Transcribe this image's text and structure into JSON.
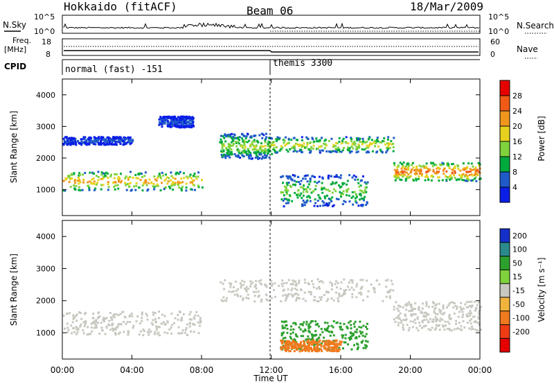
{
  "header": {
    "station": "Hokkaido (fitACF)",
    "beam": "Beam 06",
    "date": "18/Mar/2009"
  },
  "noise_panel": {
    "left_label": "N.Sky",
    "right_label": "N.Search",
    "left_ticks": [
      "10^5",
      "10^0"
    ],
    "right_ticks": [
      "10^5",
      "10^0"
    ]
  },
  "freq_panel": {
    "left_label_1": "Freq.",
    "left_label_2": "[MHz]",
    "right_label": "Nave",
    "left_ticks": [
      "18",
      "8"
    ],
    "right_ticks": [
      "60",
      "0"
    ]
  },
  "cpid": {
    "label": "CPID",
    "segments": [
      {
        "name": "normal (fast) -151",
        "start_hour": 0
      },
      {
        "name": "themis 3300",
        "start_hour": 12
      }
    ]
  },
  "axes": {
    "xlabel": "Time UT",
    "xticks": [
      "00:00",
      "04:00",
      "08:00",
      "12:00",
      "16:00",
      "20:00",
      "00:00"
    ],
    "ylabel": "Slant Range [km]",
    "yticks": [
      "1000",
      "2000",
      "3000",
      "4000"
    ]
  },
  "power_colorbar": {
    "label": "Power [dB]",
    "ticks": [
      "4",
      "8",
      "12",
      "16",
      "20",
      "24",
      "28"
    ],
    "colors": [
      "#0a1ee6",
      "#1e5ac8",
      "#00aa3c",
      "#7fd23c",
      "#e6d21e",
      "#f0961e",
      "#f05a14",
      "#e60000"
    ]
  },
  "velocity_colorbar": {
    "label": "Velocity [m s⁻¹]",
    "ticks": [
      "200",
      "100",
      "50",
      "15",
      "-15",
      "-50",
      "-100",
      "-200"
    ],
    "colors": [
      "#1430c8",
      "#2a8a8c",
      "#2ca02c",
      "#7fd23c",
      "#c8c8c0",
      "#f0b43c",
      "#f07a1e",
      "#f03c14",
      "#e60000"
    ]
  },
  "chart_data": [
    {
      "type": "heatmap",
      "title": "",
      "quantity": "Power",
      "xlabel": "Time UT",
      "ylabel": "Slant Range [km]",
      "xlim_hours": [
        0,
        24
      ],
      "ylim_km": [
        180,
        4500
      ],
      "echo_bands": [
        {
          "t0": 0.0,
          "t1": 8.0,
          "r0": 1000,
          "r1": 1600,
          "peak_db": 24
        },
        {
          "t0": 0.0,
          "t1": 4.0,
          "r0": 2450,
          "r1": 2700,
          "peak_db": 8
        },
        {
          "t0": 5.5,
          "t1": 7.5,
          "r0": 3000,
          "r1": 3350,
          "peak_db": 8
        },
        {
          "t0": 9.0,
          "t1": 12.0,
          "r0": 2000,
          "r1": 2800,
          "peak_db": 18
        },
        {
          "t0": 12.0,
          "t1": 19.0,
          "r0": 2200,
          "r1": 2700,
          "peak_db": 20
        },
        {
          "t0": 19.0,
          "t1": 24.0,
          "r0": 1300,
          "r1": 1900,
          "peak_db": 28
        },
        {
          "t0": 12.5,
          "t1": 17.5,
          "r0": 500,
          "r1": 1500,
          "peak_db": 16
        }
      ]
    },
    {
      "type": "heatmap",
      "title": "",
      "quantity": "Velocity",
      "xlabel": "Time UT",
      "ylabel": "Slant Range [km]",
      "xlim_hours": [
        0,
        24
      ],
      "ylim_km": [
        180,
        4500
      ],
      "echo_bands": [
        {
          "t0": 0.0,
          "t1": 8.0,
          "r0": 950,
          "r1": 1700,
          "velocity_ms": 0
        },
        {
          "t0": 9.0,
          "t1": 19.0,
          "r0": 2000,
          "r1": 2700,
          "velocity_ms": 0
        },
        {
          "t0": 19.0,
          "t1": 24.0,
          "r0": 1100,
          "r1": 2000,
          "velocity_ms": 0
        },
        {
          "t0": 12.5,
          "t1": 17.5,
          "r0": 500,
          "r1": 1400,
          "velocity_ms": 60
        },
        {
          "t0": 12.5,
          "t1": 16.0,
          "r0": 450,
          "r1": 800,
          "velocity_ms": -60
        }
      ]
    }
  ]
}
